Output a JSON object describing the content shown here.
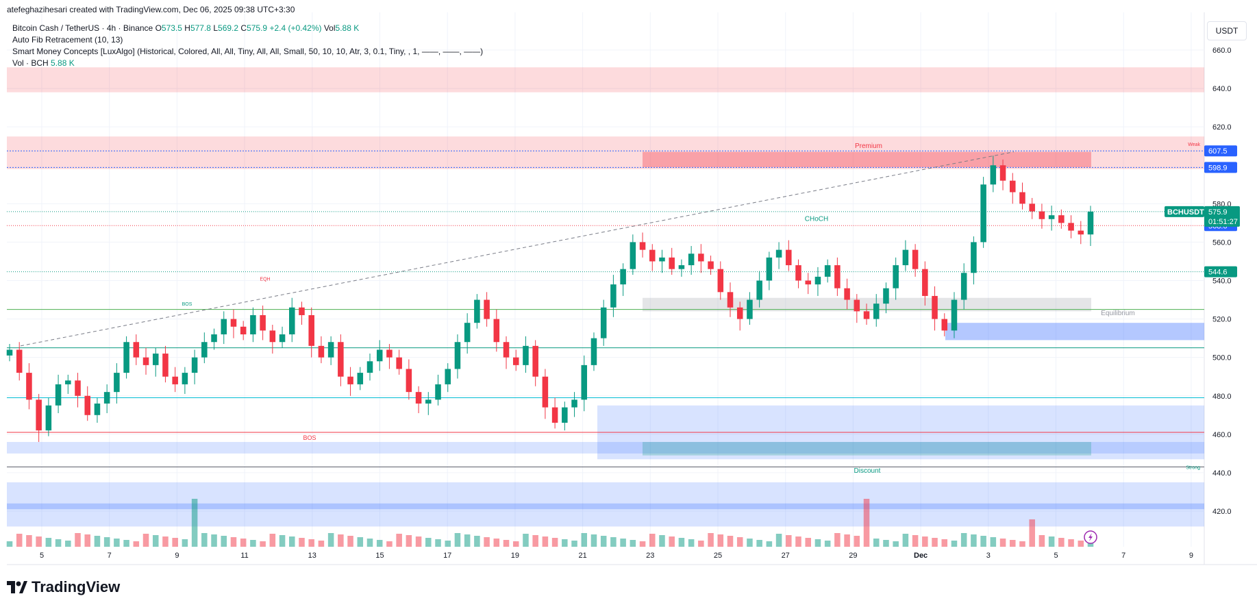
{
  "header": {
    "text": "atefeghazihesari created with TradingView.com, Dec 06, 2025 09:38 UTC+3:30"
  },
  "legend": {
    "symbol": "Bitcoin Cash / TetherUS · 4h · Binance",
    "o_label": "O",
    "o": "573.5",
    "h_label": "H",
    "h": "577.8",
    "l_label": "L",
    "l": "569.2",
    "c_label": "C",
    "c": "575.9",
    "change": "+2.4 (+0.42%)",
    "vol_label": "Vol",
    "vol": "5.88 K",
    "fib": "Auto Fib Retracement (10, 13)",
    "smc": "Smart Money Concepts [LuxAlgo] (Historical, Colored, All, All, Tiny, All, All, Small, 50, 10, 10, Atr, 3, 0.1, Tiny, , 1, ——, ——, ——)",
    "vol_study": "Vol · BCH",
    "vol_study_value": "5.88 K"
  },
  "currency": "USDT",
  "logo_text": "TradingView",
  "colors": {
    "up": "#089981",
    "down": "#f23645",
    "premium": "#f23645",
    "discount": "#2962ff",
    "grid": "#f0f3fa"
  },
  "price_tags": {
    "p607": "607.5",
    "p598": "598.9",
    "symbol": "BCHUSDT",
    "last": "575.9",
    "countdown": "01:51:27",
    "p568": "568.6",
    "p544": "544.6"
  },
  "annotations": {
    "premium": "Premium",
    "discount": "Discount",
    "equilibrium": "Equilibrium",
    "weak": "Weak",
    "strong": "Strong",
    "choch": "CHoCH",
    "bos": "BOS",
    "eqh": "EQH"
  },
  "chart_data": {
    "type": "candlestick",
    "symbol": "BCHUSDT",
    "interval": "4h",
    "y_ticks": [
      420,
      440,
      460,
      480,
      500,
      520,
      540,
      560,
      580,
      620,
      640,
      660
    ],
    "y_range": [
      411,
      666
    ],
    "x_ticks": [
      "5",
      "7",
      "9",
      "11",
      "13",
      "15",
      "17",
      "19",
      "21",
      "23",
      "25",
      "27",
      "29",
      "Dec",
      "3",
      "5",
      "7",
      "9"
    ],
    "close_series": [
      504,
      492,
      478,
      462,
      475,
      486,
      488,
      480,
      470,
      476,
      482,
      492,
      508,
      500,
      496,
      502,
      490,
      486,
      492,
      500,
      508,
      512,
      520,
      516,
      512,
      522,
      514,
      508,
      512,
      526,
      522,
      506,
      500,
      508,
      490,
      486,
      492,
      498,
      504,
      500,
      494,
      482,
      476,
      478,
      486,
      494,
      508,
      518,
      530,
      520,
      508,
      500,
      496,
      506,
      490,
      474,
      466,
      474,
      478,
      496,
      510,
      526,
      538,
      546,
      560,
      556,
      550,
      552,
      546,
      548,
      554,
      550,
      546,
      534,
      526,
      520,
      530,
      540,
      552,
      556,
      548,
      540,
      538,
      542,
      548,
      536,
      530,
      524,
      520,
      528,
      536,
      548,
      556,
      546,
      532,
      520,
      514,
      530,
      544,
      560,
      590,
      600,
      592,
      586,
      580,
      576,
      572,
      574,
      570,
      566,
      564,
      575.9
    ],
    "volume_labels": [
      "5.88 K"
    ],
    "levels": [
      {
        "name": "weak high",
        "value": 607.5
      },
      {
        "name": "premium top",
        "value": 598.9
      },
      {
        "name": "CHoCH level",
        "value": 568.6
      },
      {
        "name": "fib level",
        "value": 544.6
      },
      {
        "name": "equilibrium",
        "value": 525
      },
      {
        "name": "strong low",
        "value": 444
      }
    ],
    "premium_zone": [
      598,
      615
    ],
    "discount_zone": [
      444,
      456
    ],
    "grid": true
  }
}
